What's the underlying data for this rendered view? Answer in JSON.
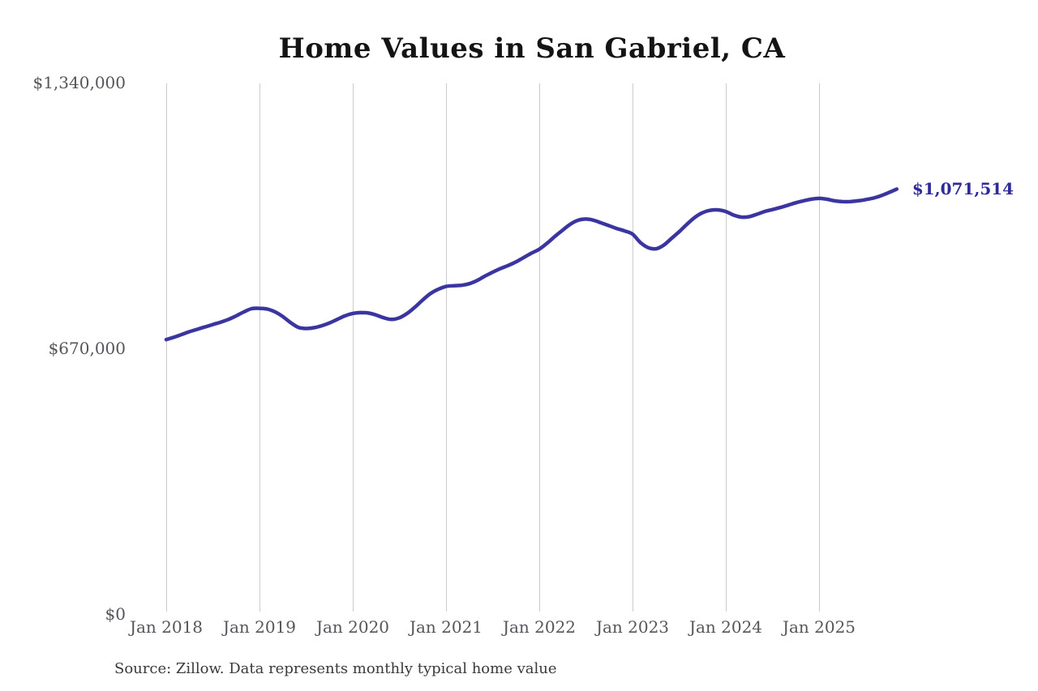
{
  "page": {
    "background": "#ffffff"
  },
  "chart_data": {
    "type": "line",
    "title": "Home Values in San Gabriel, CA",
    "source_note": "Source: Zillow. Data represents monthly typical home value",
    "end_label": "$1,071,514",
    "end_value": 1071514,
    "legend": "none",
    "grid": "vertical-only",
    "ylim": [
      0,
      1340000
    ],
    "y_ticks": [
      {
        "label": "$1,340,000",
        "value": 1340000
      },
      {
        "label": "$670,000",
        "value": 670000
      },
      {
        "label": "$0",
        "value": 0
      }
    ],
    "x_ticks": [
      {
        "label": "Jan 2018",
        "month_index": 0
      },
      {
        "label": "Jan 2019",
        "month_index": 12
      },
      {
        "label": "Jan 2020",
        "month_index": 24
      },
      {
        "label": "Jan 2021",
        "month_index": 36
      },
      {
        "label": "Jan 2022",
        "month_index": 48
      },
      {
        "label": "Jan 2023",
        "month_index": 60
      },
      {
        "label": "Jan 2024",
        "month_index": 72
      },
      {
        "label": "Jan 2025",
        "month_index": 84
      }
    ],
    "colors": {
      "line": "#3b35a0",
      "value_label": "#2d2a9a",
      "grid": "#cbcbcb",
      "title": "#141414",
      "axis_text": "#55565b",
      "source_text": "#3a3a3a"
    },
    "series": [
      {
        "name": "Typical home value (monthly)",
        "start": "Jan 2018",
        "end": "Nov 2025",
        "interval": "monthly",
        "values": [
          692000,
          698000,
          705000,
          712000,
          718000,
          724000,
          730000,
          736000,
          743000,
          752000,
          762000,
          770000,
          771000,
          769000,
          762000,
          750000,
          735000,
          723000,
          720000,
          722000,
          727000,
          734000,
          743000,
          752000,
          758000,
          760000,
          759000,
          754000,
          747000,
          743000,
          747000,
          758000,
          774000,
          792000,
          808000,
          819000,
          826000,
          828000,
          829000,
          833000,
          841000,
          852000,
          862000,
          871000,
          879000,
          888000,
          899000,
          910000,
          920000,
          935000,
          952000,
          968000,
          983000,
          993000,
          996000,
          993000,
          986000,
          979000,
          972000,
          966000,
          958000,
          937000,
          924000,
          921000,
          930000,
          947000,
          964000,
          983000,
          1000000,
          1012000,
          1018000,
          1019000,
          1015000,
          1006000,
          1001000,
          1002000,
          1008000,
          1015000,
          1020000,
          1025000,
          1031000,
          1037000,
          1042000,
          1046000,
          1048000,
          1046000,
          1042000,
          1040000,
          1040000,
          1042000,
          1045000,
          1049000,
          1055000,
          1063000,
          1071514
        ]
      }
    ]
  }
}
